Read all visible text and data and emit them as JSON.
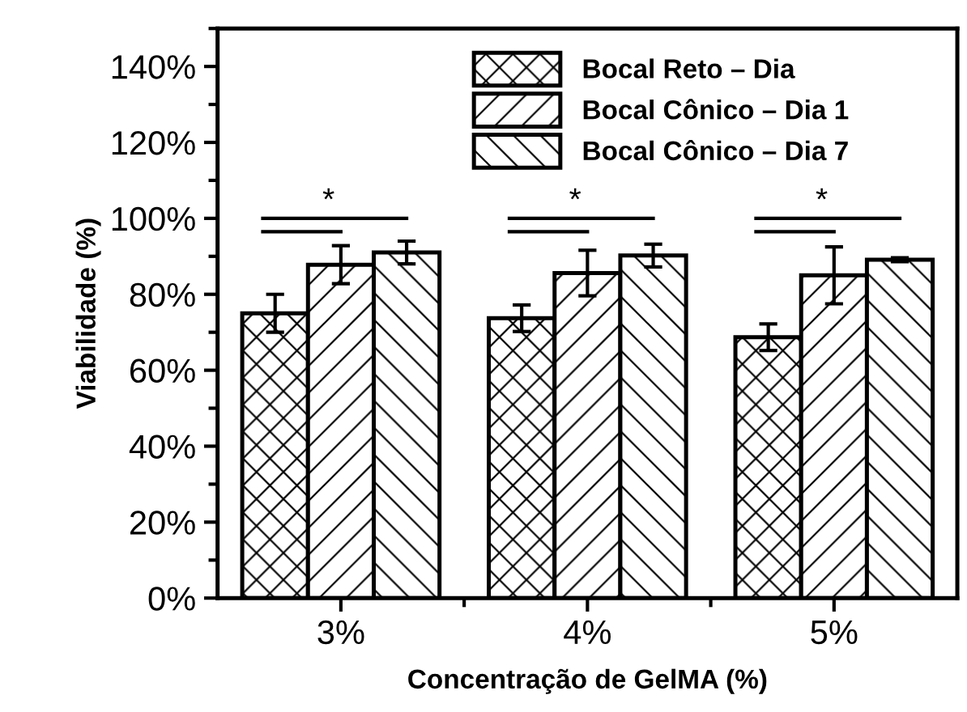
{
  "chart_data": {
    "type": "bar",
    "xlabel": "Concentração de GelMA (%)",
    "ylabel": "Viabilidade (%)",
    "categories": [
      "3%",
      "4%",
      "5%"
    ],
    "series": [
      {
        "name": "Bocal Reto – Dia",
        "color": "#000000",
        "values": [
          75,
          73.7,
          68.7
        ],
        "errors": [
          5,
          3.5,
          3.5
        ]
      },
      {
        "name": "Bocal Cônico – Dia 1",
        "color": "#000000",
        "values": [
          87.8,
          85.6,
          85
        ],
        "errors": [
          5,
          6,
          7.5
        ]
      },
      {
        "name": "Bocal Cônico – Dia 7",
        "color": "#000000",
        "values": [
          91,
          90.2,
          89.1
        ],
        "errors": [
          3,
          3,
          0.5
        ]
      }
    ],
    "ylim": [
      0,
      150
    ],
    "yticks": [
      {
        "value": 0,
        "label": "0%"
      },
      {
        "value": 20,
        "label": "20%"
      },
      {
        "value": 40,
        "label": "40%"
      },
      {
        "value": 60,
        "label": "60%"
      },
      {
        "value": 80,
        "label": "80%"
      },
      {
        "value": 100,
        "label": "100%"
      },
      {
        "value": 120,
        "label": "120%"
      },
      {
        "value": 140,
        "label": "140%"
      }
    ],
    "annotations": [
      "*",
      "*",
      "*"
    ],
    "legend": "top",
    "grid": false
  }
}
